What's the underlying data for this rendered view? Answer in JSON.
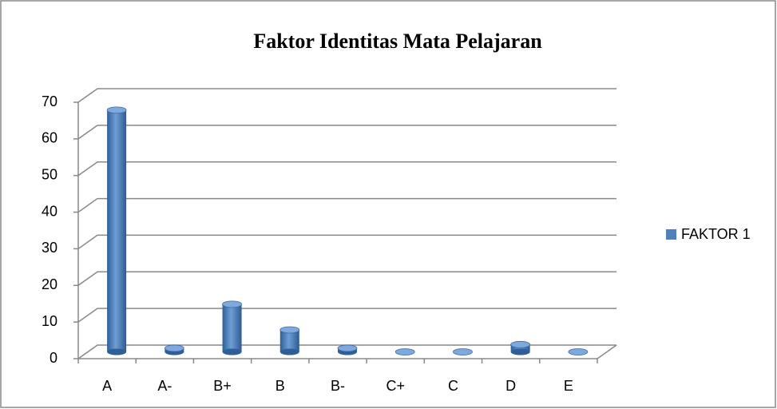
{
  "chart_data": {
    "type": "bar",
    "title": "Faktor Identitas Mata Pelajaran",
    "categories": [
      "A",
      "A-",
      "B+",
      "B",
      "B-",
      "C+",
      "C",
      "D",
      "E"
    ],
    "series": [
      {
        "name": "FAKTOR 1",
        "color": "#4f81bd",
        "values": [
          66,
          1,
          13,
          6,
          1,
          0,
          0,
          2,
          0
        ]
      }
    ],
    "ylim": [
      0,
      70
    ],
    "yticks": [
      0,
      10,
      20,
      30,
      40,
      50,
      60,
      70
    ],
    "grid": true,
    "legend": "right"
  }
}
